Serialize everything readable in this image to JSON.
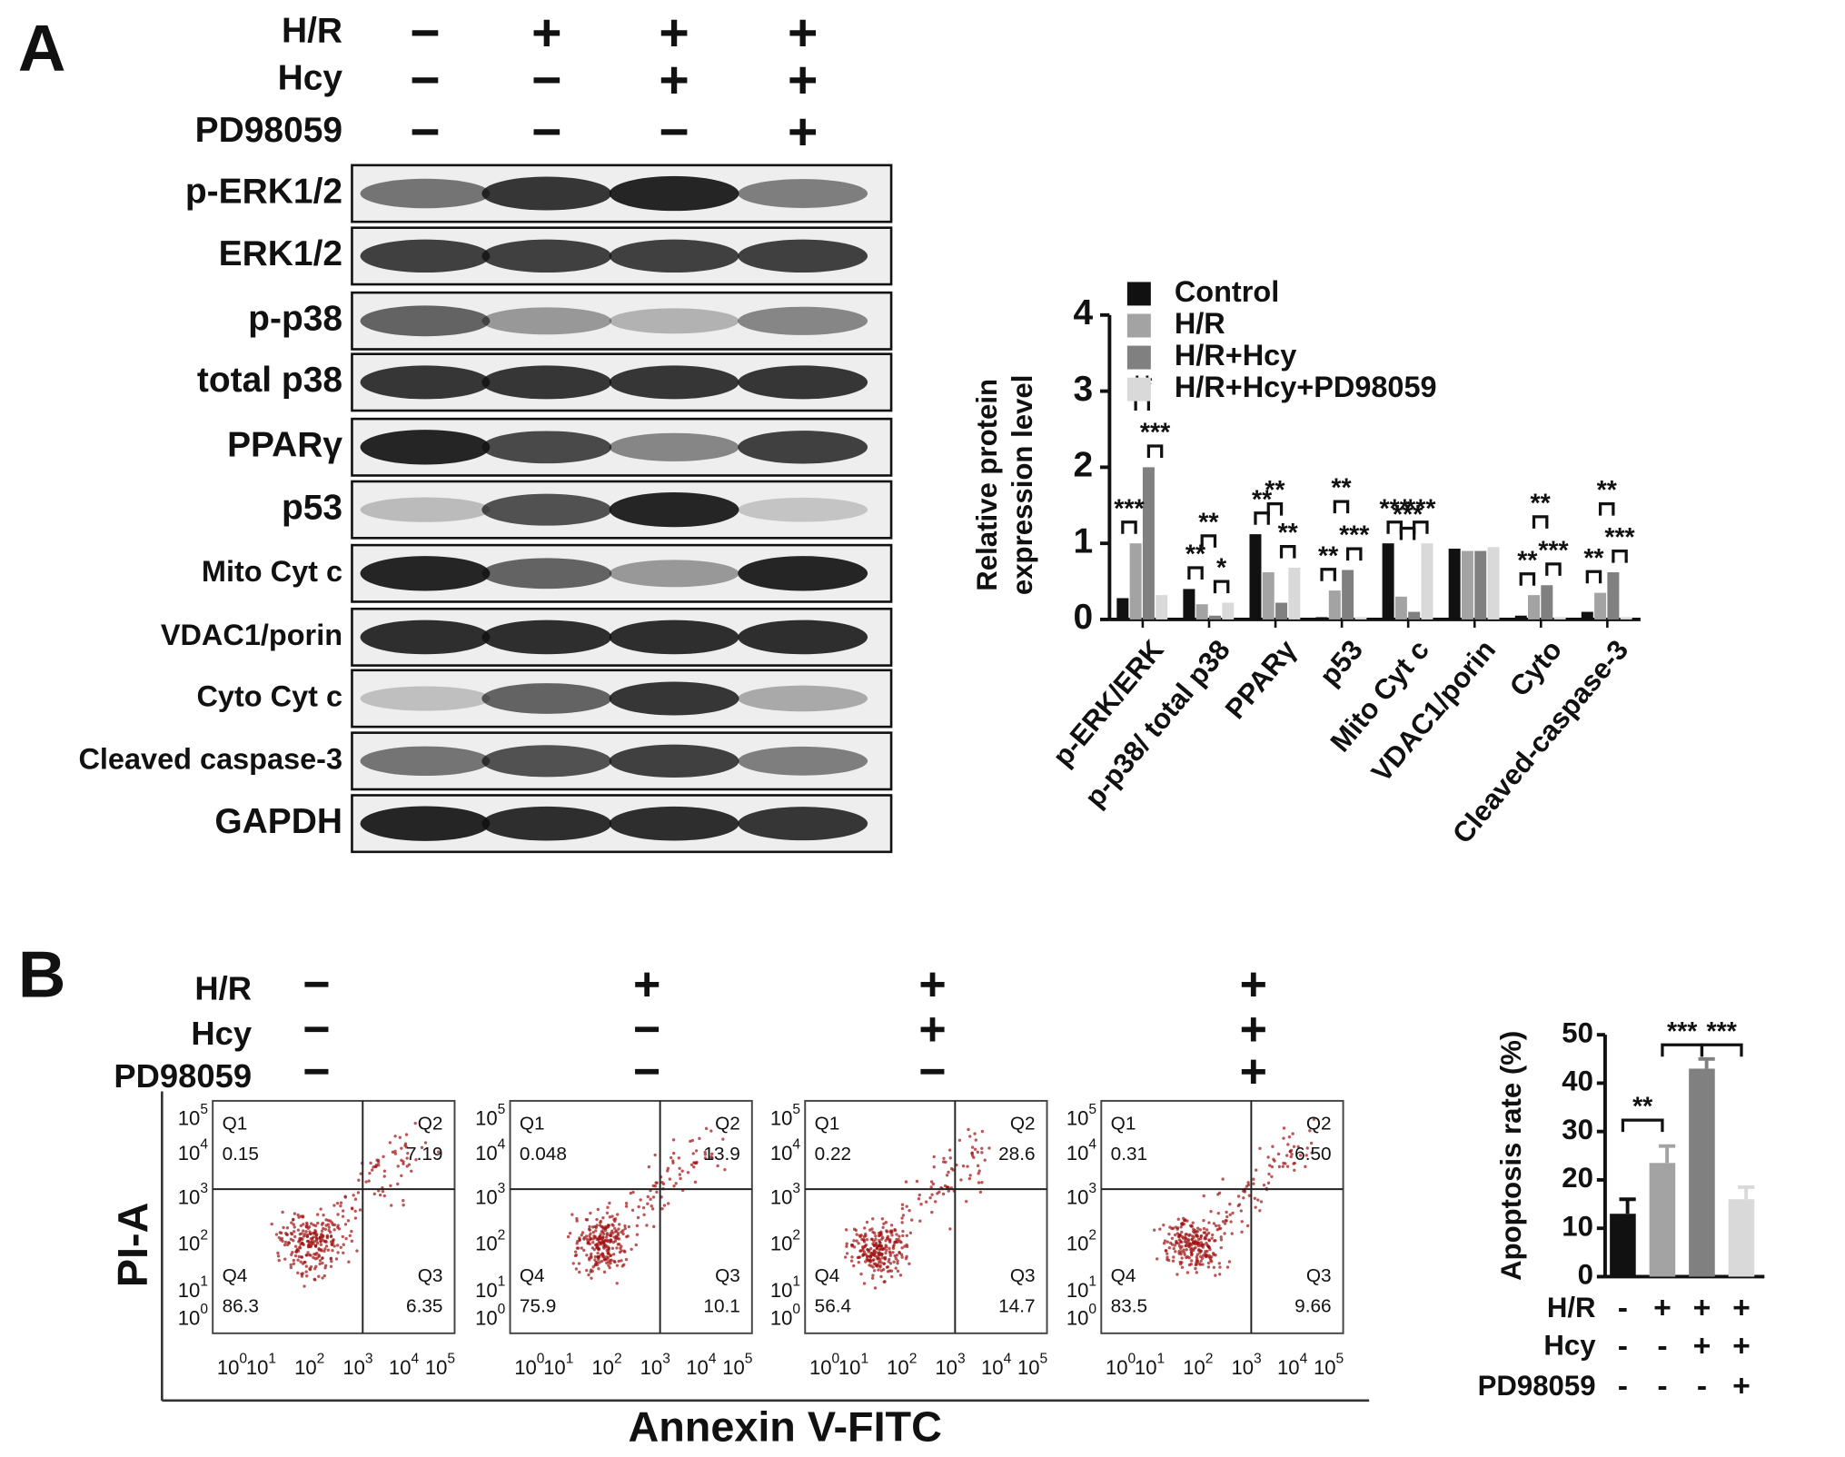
{
  "panel_a": {
    "label": "A",
    "conditions": [
      {
        "name": "H/R",
        "marks": [
          "−",
          "+",
          "+",
          "+"
        ]
      },
      {
        "name": "Hcy",
        "marks": [
          "−",
          "−",
          "+",
          "+"
        ]
      },
      {
        "name": "PD98059",
        "marks": [
          "−",
          "−",
          "−",
          "+"
        ]
      }
    ],
    "blot_labels": [
      "p-ERK1/2",
      "ERK1/2",
      "p-p38",
      "total p38",
      "PPARγ",
      "p53",
      "Mito Cyt c",
      "VDAC1/porin",
      "Cyto Cyt c",
      "Cleaved caspase-3",
      "GAPDH"
    ]
  },
  "panel_b": {
    "label": "B",
    "conditions": [
      {
        "name": "H/R",
        "marks": [
          "−",
          "+",
          "+",
          "+"
        ]
      },
      {
        "name": "Hcy",
        "marks": [
          "−",
          "−",
          "+",
          "+"
        ]
      },
      {
        "name": "PD98059",
        "marks": [
          "−",
          "−",
          "−",
          "+"
        ]
      }
    ],
    "flow_plots": [
      {
        "quadrants": [
          "Q1",
          "Q2",
          "Q3",
          "Q4"
        ],
        "values": [
          "0.15",
          "7.19",
          "6.35",
          "86.3"
        ]
      },
      {
        "quadrants": [
          "Q1",
          "Q2",
          "Q3",
          "Q4"
        ],
        "values": [
          "0.048",
          "13.9",
          "10.1",
          "75.9"
        ]
      },
      {
        "quadrants": [
          "Q1",
          "Q2",
          "Q3",
          "Q4"
        ],
        "values": [
          "0.22",
          "28.6",
          "14.7",
          "56.4"
        ]
      },
      {
        "quadrants": [
          "Q1",
          "Q2",
          "Q3",
          "Q4"
        ],
        "values": [
          "0.31",
          "6.50",
          "9.66",
          "83.5"
        ]
      }
    ],
    "axis_tick_base": "10",
    "axis_tick_exponents": [
      0,
      1,
      2,
      3,
      4,
      5
    ],
    "x_label": "Annexin V-FITC",
    "y_label": "PI-A",
    "chart_conditions": [
      {
        "name": "H/R",
        "marks": [
          "-",
          "+",
          "+",
          "+"
        ]
      },
      {
        "name": "Hcy",
        "marks": [
          "-",
          "-",
          "+",
          "+"
        ]
      },
      {
        "name": "PD98059",
        "marks": [
          "-",
          "-",
          "-",
          "+"
        ]
      }
    ]
  },
  "chart_data": [
    {
      "type": "bar",
      "y_label": [
        "Relative protein",
        "expression level"
      ],
      "categories": [
        "p-ERK/ERK",
        "p-p38/ total p38",
        "PPARγ",
        "p53",
        "Mito Cyt c",
        "VDAC1/porin",
        "Cyto",
        "Cleaved-caspase-3"
      ],
      "series": [
        {
          "name": "Control",
          "color": "#111111",
          "values": [
            0.28,
            0.4,
            1.12,
            0.03,
            1.0,
            0.93,
            0.05,
            0.1
          ]
        },
        {
          "name": "H/R",
          "color": "#a3a3a3",
          "values": [
            1.0,
            0.2,
            0.62,
            0.38,
            0.3,
            0.9,
            0.32,
            0.35
          ]
        },
        {
          "name": "H/R+Hcy",
          "color": "#808080",
          "values": [
            2.0,
            0.05,
            0.22,
            0.65,
            0.1,
            0.9,
            0.45,
            0.62
          ]
        },
        {
          "name": "H/R+Hcy+PD98059",
          "color": "#d9d9d9",
          "values": [
            0.32,
            0.22,
            0.68,
            0.03,
            1.0,
            0.95,
            0.03,
            0.03
          ]
        }
      ],
      "significance": [
        [
          [
            "***",
            "**",
            "***"
          ]
        ],
        [
          [
            "**",
            "**",
            "*"
          ]
        ],
        [
          [
            "**",
            "**",
            "**"
          ]
        ],
        [
          [
            "**",
            "**",
            "***"
          ]
        ],
        [
          [
            "***",
            "***",
            "***"
          ]
        ],
        [
          []
        ],
        [
          [
            "**",
            "**",
            "***"
          ]
        ],
        [
          [
            "**",
            "**",
            "***"
          ]
        ]
      ],
      "ylim": [
        0,
        4
      ],
      "yticks": [
        0,
        1,
        2,
        3,
        4
      ],
      "legend": "top-left"
    },
    {
      "type": "bar",
      "y_label": "Apoptosis rate (%)",
      "categories": [
        null,
        null,
        null,
        null
      ],
      "values": [
        13,
        23.5,
        43,
        16
      ],
      "errors": [
        3,
        3.5,
        2,
        2.5
      ],
      "colors": [
        "#111111",
        "#a3a3a3",
        "#808080",
        "#d9d9d9"
      ],
      "significance": [
        "**",
        "***",
        "***"
      ],
      "ylim": [
        0,
        50
      ],
      "yticks": [
        0,
        10,
        20,
        30,
        40,
        50
      ]
    }
  ]
}
